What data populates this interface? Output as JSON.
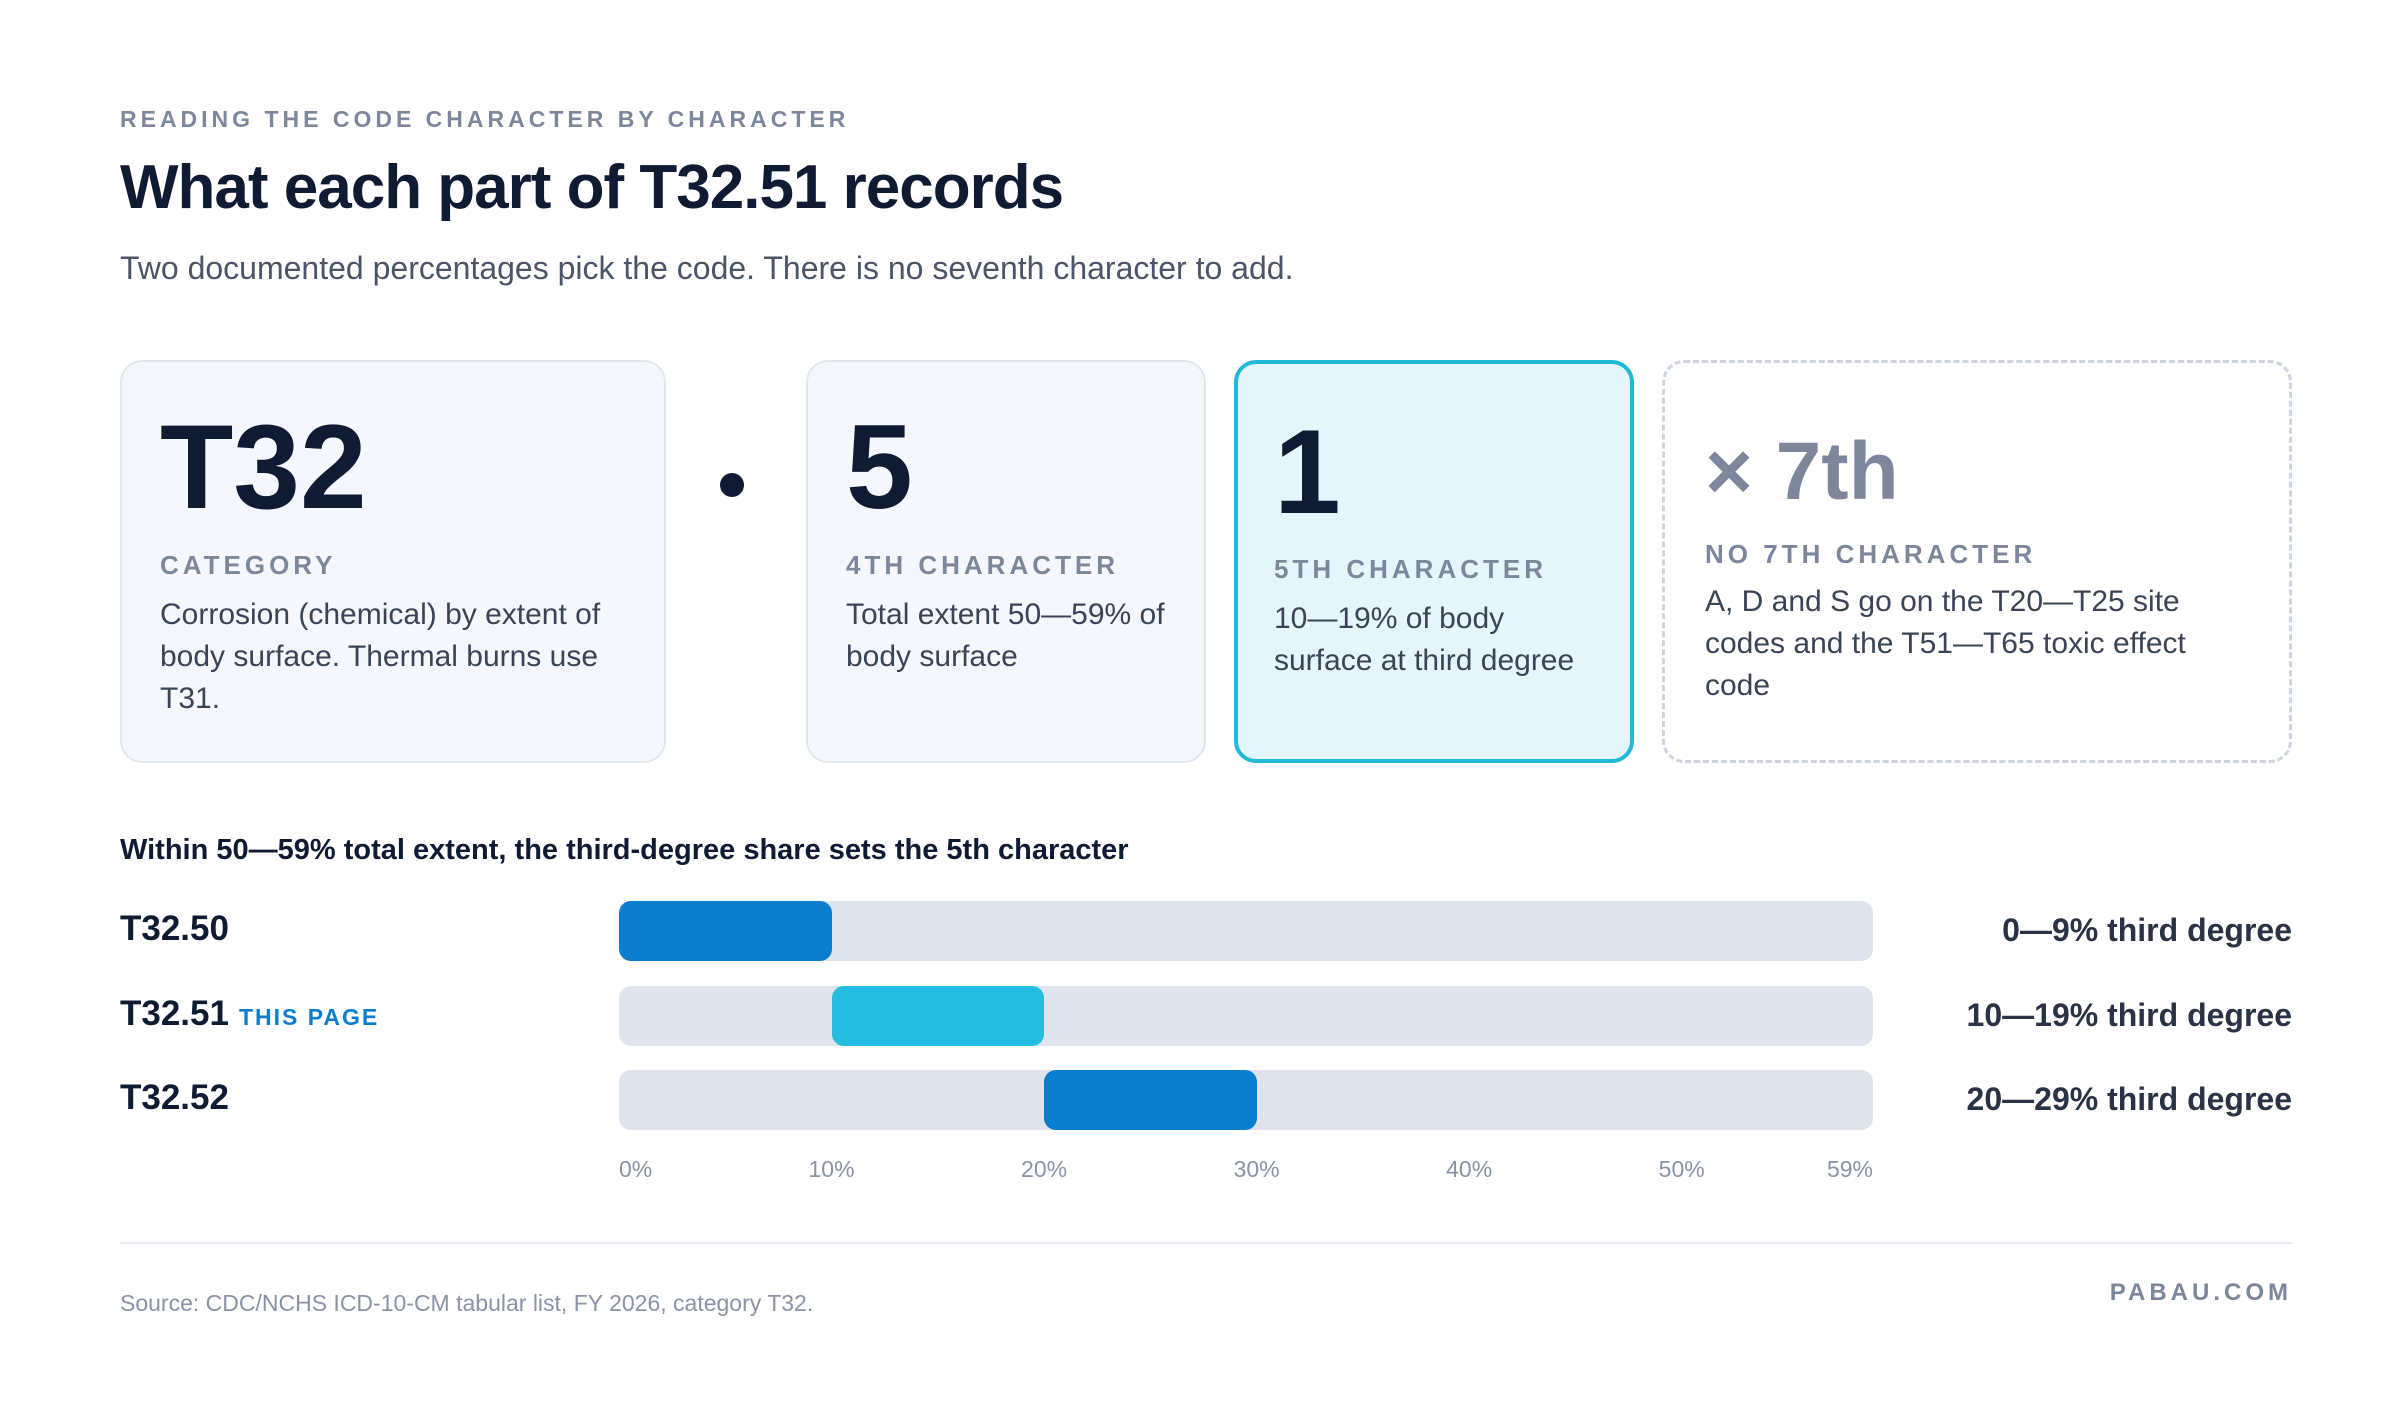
{
  "header": {
    "eyebrow": "READING THE CODE CHARACTER BY CHARACTER",
    "title": "What each part of T32.51 records",
    "subtitle": "Two documented percentages pick the code. There is no seventh character to add."
  },
  "cards": {
    "category": {
      "code": "T32",
      "label": "CATEGORY",
      "description": "Corrosion (chemical) by extent of body surface. Thermal burns use T31."
    },
    "separator": ".",
    "fourth": {
      "code": "5",
      "label": "4TH CHARACTER",
      "description": "Total extent 50—59% of body surface"
    },
    "fifth": {
      "code": "1",
      "label": "5TH CHARACTER",
      "description": "10—19% of body surface at third degree"
    },
    "seventh": {
      "code": "× 7th",
      "label": "NO 7TH CHARACTER",
      "description": "A, D and S go on the T20—T25 site codes and the T51—T65 toxic effect code"
    }
  },
  "chart_data": {
    "type": "bar",
    "title": "Within 50—59% total extent, the third-degree share sets the 5th character",
    "categories": [
      "T32.50",
      "T32.51",
      "T32.52"
    ],
    "series": [
      {
        "ranges": [
          [
            0,
            9
          ],
          [
            10,
            19
          ],
          [
            20,
            29
          ]
        ],
        "range_labels": [
          "0—9% third degree",
          "10—19% third degree",
          "20—29% third degree"
        ]
      }
    ],
    "highlight": {
      "category": "T32.51",
      "tag": "THIS PAGE"
    },
    "x_ticks": [
      "0%",
      "10%",
      "20%",
      "30%",
      "40%",
      "50%",
      "59%"
    ],
    "xlim": [
      0,
      59
    ],
    "colors": {
      "bar": "#0b7dcf",
      "highlight": "#22bde0",
      "track": "#dfe3ec"
    }
  },
  "footer": {
    "source": "Source: CDC/NCHS ICD-10-CM tabular list, FY 2026, category T32.",
    "brand": "PABAU.COM"
  }
}
